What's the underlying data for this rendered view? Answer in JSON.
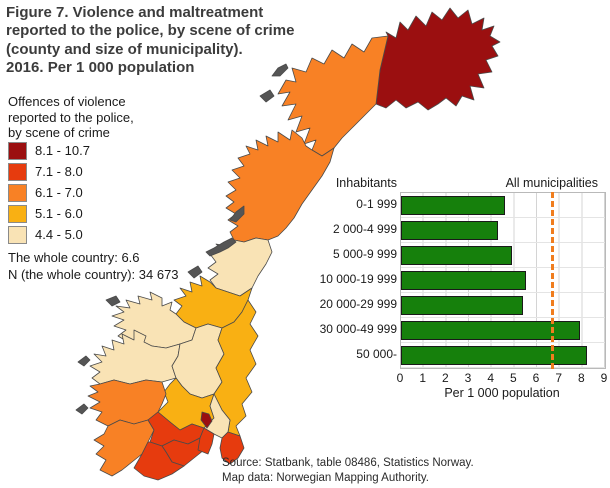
{
  "title": {
    "lines": [
      "Figure 7. Violence and maltreatment",
      "reported to the police, by scene of crime",
      "(county and size of municipality).",
      "2016. Per 1 000 population"
    ]
  },
  "legend": {
    "heading_lines": [
      "Offences of violence",
      "reported to the police,",
      "by scene of crime"
    ],
    "classes": [
      {
        "label": "8.1 - 10.7",
        "color": "#9b0f10"
      },
      {
        "label": "7.1 - 8.0",
        "color": "#e63b0e"
      },
      {
        "label": "6.1 - 7.0",
        "color": "#f88125"
      },
      {
        "label": "5.1 - 6.0",
        "color": "#f9b013"
      },
      {
        "label": "4.4 - 5.0",
        "color": "#f9e3b5"
      }
    ],
    "whole_country": "The whole country: 6.6",
    "n_whole_country": "N (the whole country): 34 673"
  },
  "chart_data": {
    "type": "bar",
    "orientation": "horizontal",
    "group_label": "Inhabitants",
    "categories": [
      "0-1 999",
      "2 000-4 999",
      "5 000-9 999",
      "10 000-19 999",
      "20 000-29 999",
      "30 000-49 999",
      "50 000-"
    ],
    "values": [
      4.6,
      4.3,
      4.9,
      5.5,
      5.4,
      7.9,
      8.2
    ],
    "reference_line": {
      "label": "All municipalities",
      "value": 6.6,
      "color": "#f07d1e",
      "style": "dashed"
    },
    "xlabel": "Per 1 000 population",
    "xticks": [
      0,
      1,
      2,
      3,
      4,
      5,
      6,
      7,
      8,
      9
    ],
    "xlim": [
      0,
      9
    ],
    "bar_color": "#16800c",
    "grid": true,
    "legend_position": "top-right"
  },
  "map": {
    "description": "Choropleth map of Norway, counties colored by offences of violence per 1 000 population",
    "regions": [
      {
        "id": "finnmark",
        "class_index": 0
      },
      {
        "id": "troms",
        "class_index": 2
      },
      {
        "id": "nordland",
        "class_index": 2
      },
      {
        "id": "nord-trondelag",
        "class_index": 4
      },
      {
        "id": "sor-trondelag",
        "class_index": 3
      },
      {
        "id": "more-og-romsdal",
        "class_index": 4
      },
      {
        "id": "sogn-og-fjordane",
        "class_index": 4
      },
      {
        "id": "oppland",
        "class_index": 4
      },
      {
        "id": "hedmark",
        "class_index": 3
      },
      {
        "id": "buskerud",
        "class_index": 3
      },
      {
        "id": "hordaland",
        "class_index": 2
      },
      {
        "id": "rogaland",
        "class_index": 2
      },
      {
        "id": "telemark",
        "class_index": 1
      },
      {
        "id": "aust-agder",
        "class_index": 1
      },
      {
        "id": "vest-agder",
        "class_index": 1
      },
      {
        "id": "akershus",
        "class_index": 4
      },
      {
        "id": "ostfold",
        "class_index": 1
      },
      {
        "id": "vestfold",
        "class_index": 1
      },
      {
        "id": "oslo",
        "class_index": 0
      }
    ]
  },
  "source": {
    "line1": "Source: Statbank, table 08486, Statistics Norway.",
    "line2": "Map data: Norwegian Mapping Authority."
  }
}
